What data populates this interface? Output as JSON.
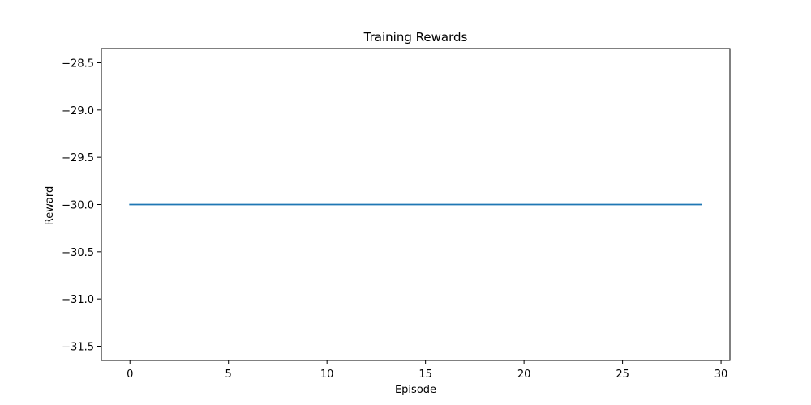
{
  "chart_data": {
    "type": "line",
    "title": "Training Rewards",
    "xlabel": "Episode",
    "ylabel": "Reward",
    "xlim": [
      -1.45,
      30.45
    ],
    "ylim": [
      -31.65,
      -28.35
    ],
    "xticks": [
      0,
      5,
      10,
      15,
      20,
      25,
      30
    ],
    "yticks": [
      -28.5,
      -29.0,
      -29.5,
      -30.0,
      -30.5,
      -31.0,
      -31.5
    ],
    "xtick_labels": [
      "0",
      "5",
      "10",
      "15",
      "20",
      "25",
      "30"
    ],
    "ytick_labels": [
      "−28.5",
      "−29.0",
      "−29.5",
      "−30.0",
      "−30.5",
      "−31.0",
      "−31.5"
    ],
    "grid": false,
    "series": [
      {
        "color": "#1f77b4",
        "x": [
          0,
          1,
          2,
          3,
          4,
          5,
          6,
          7,
          8,
          9,
          10,
          11,
          12,
          13,
          14,
          15,
          16,
          17,
          18,
          19,
          20,
          21,
          22,
          23,
          24,
          25,
          26,
          27,
          28,
          29
        ],
        "y": [
          -30,
          -30,
          -30,
          -30,
          -30,
          -30,
          -30,
          -30,
          -30,
          -30,
          -30,
          -30,
          -30,
          -30,
          -30,
          -30,
          -30,
          -30,
          -30,
          -30,
          -30,
          -30,
          -30,
          -30,
          -30,
          -30,
          -30,
          -30,
          -30,
          -30
        ]
      }
    ]
  }
}
